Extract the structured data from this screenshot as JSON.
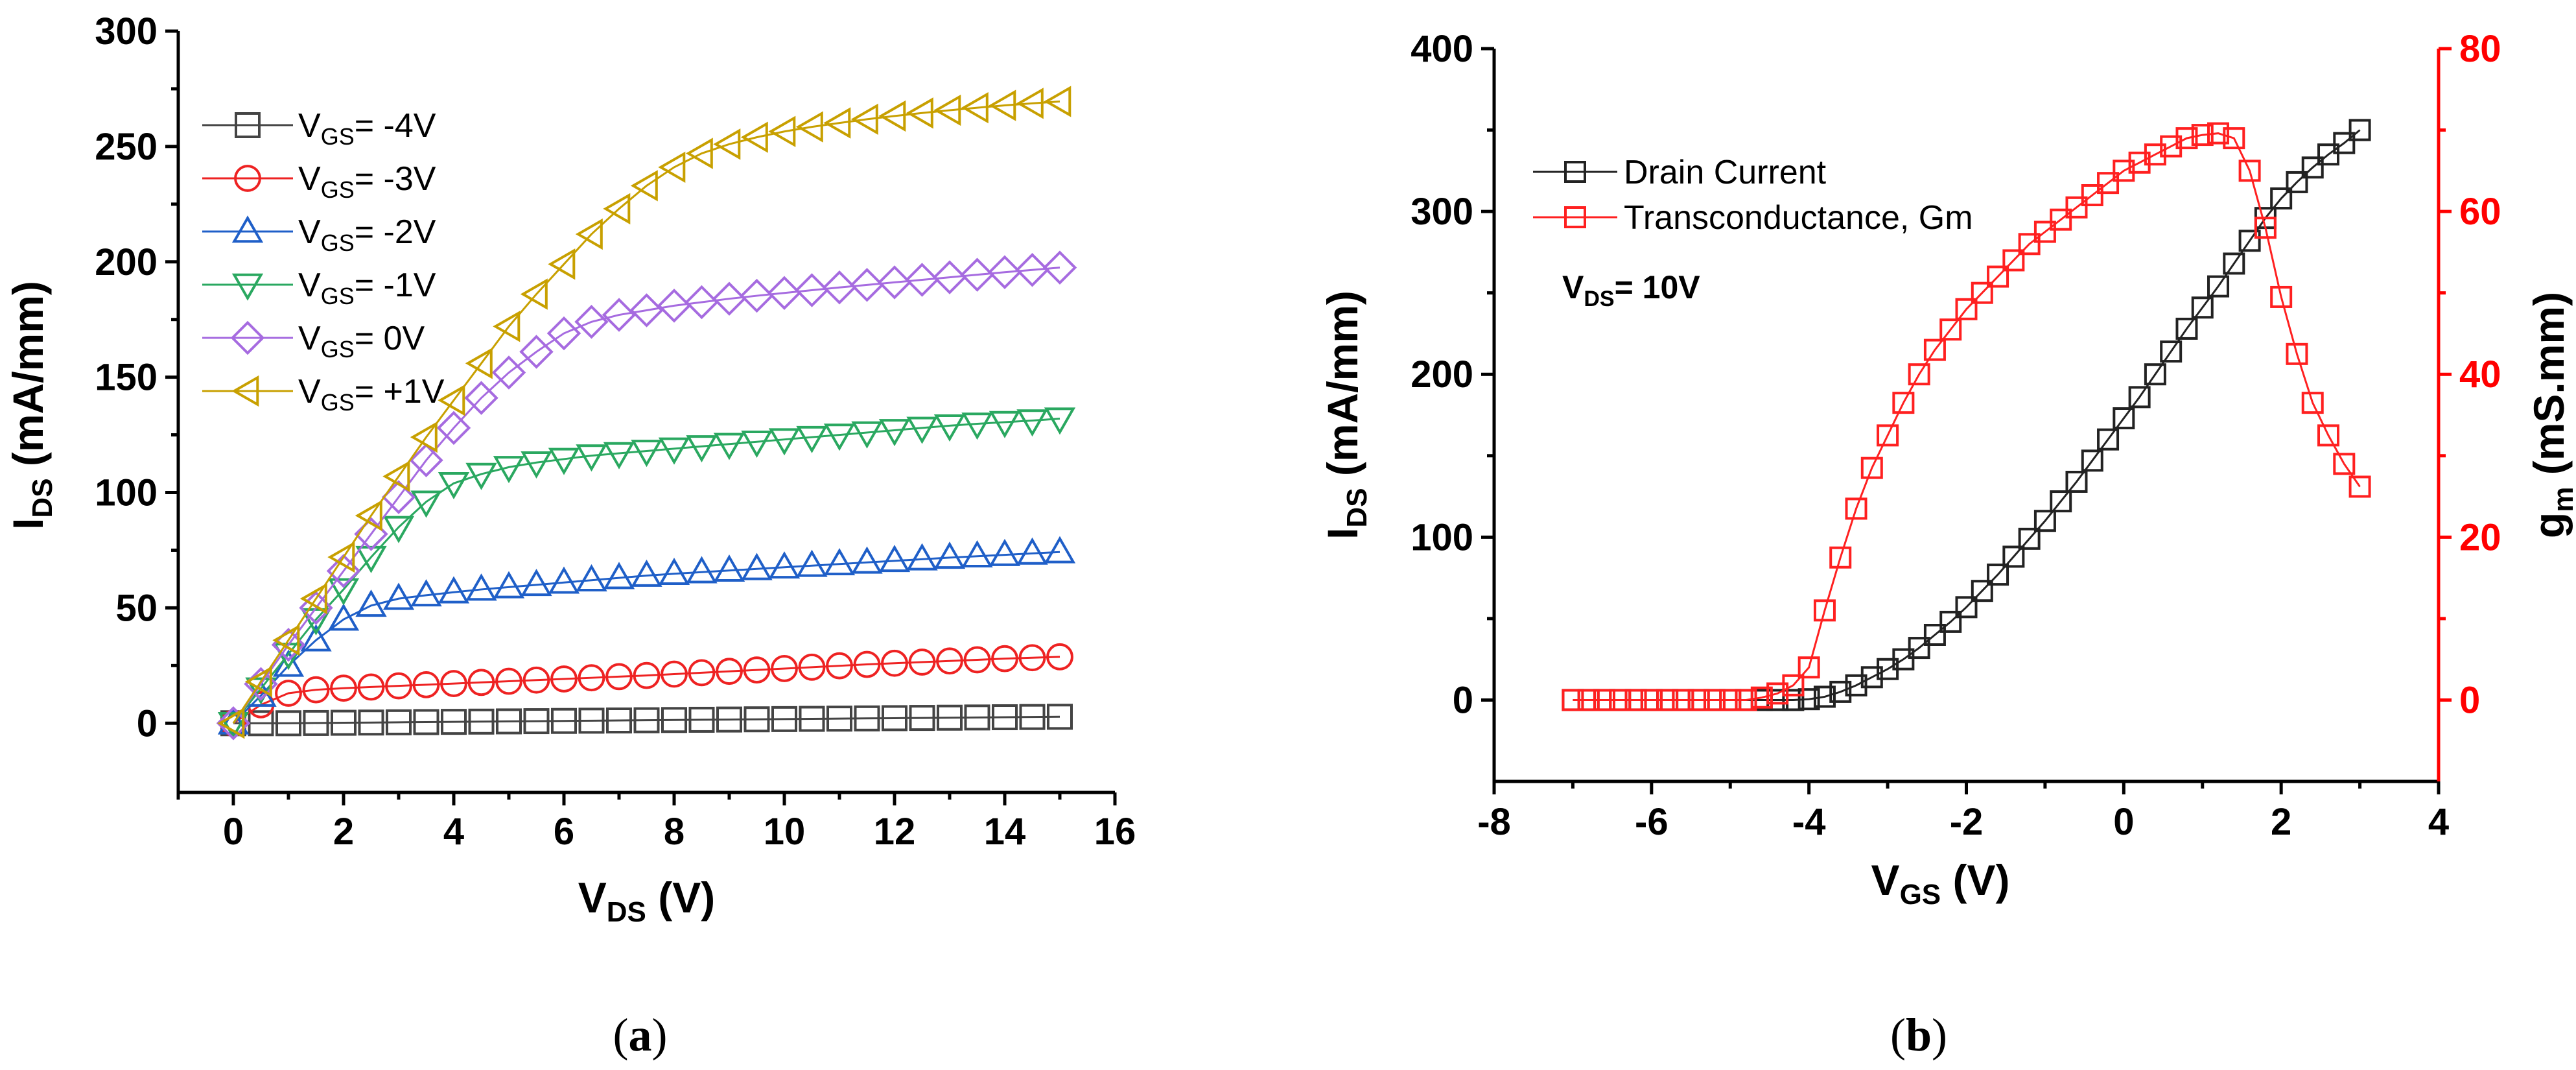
{
  "chart_data": [
    {
      "type": "scatter",
      "panel": "(a)",
      "caption_letter": "a",
      "xlabel": "V_DS (V)",
      "xlabel_main": "V",
      "xlabel_sub": "DS",
      "xlabel_unit": " (V)",
      "ylabel": "I_DS (mA/mm)",
      "ylabel_main": "I",
      "ylabel_sub": "DS",
      "ylabel_unit": " (mA/mm)",
      "xlim": [
        -1,
        16
      ],
      "ylim": [
        -30,
        300
      ],
      "xticks": [
        0,
        2,
        4,
        6,
        8,
        10,
        12,
        14,
        16
      ],
      "yticks": [
        0,
        50,
        100,
        150,
        200,
        250,
        300
      ],
      "x": [
        0,
        0.5,
        1,
        1.5,
        2,
        2.5,
        3,
        3.5,
        4,
        4.5,
        5,
        5.5,
        6,
        6.5,
        7,
        7.5,
        8,
        8.5,
        9,
        9.5,
        10,
        10.5,
        11,
        11.5,
        12,
        12.5,
        13,
        13.5,
        14,
        14.5,
        15
      ],
      "series": [
        {
          "name": "V_GS= -4V",
          "label_main": "V",
          "label_sub": "GS",
          "label_rest": "= -4V",
          "marker": "square",
          "color": "#444444",
          "values": [
            0,
            0,
            0,
            0.1,
            0.2,
            0.3,
            0.4,
            0.5,
            0.6,
            0.7,
            0.8,
            0.9,
            1,
            1.1,
            1.2,
            1.3,
            1.4,
            1.5,
            1.6,
            1.7,
            1.8,
            1.9,
            2,
            2.1,
            2.2,
            2.3,
            2.4,
            2.5,
            2.6,
            2.7,
            2.8
          ]
        },
        {
          "name": "V_GS= -3V",
          "label_main": "V",
          "label_sub": "GS",
          "label_rest": "= -3V",
          "marker": "circle",
          "color": "#ee2222",
          "values": [
            0,
            8,
            13,
            14.5,
            15.2,
            15.7,
            16.2,
            16.7,
            17.2,
            17.7,
            18.2,
            18.7,
            19.2,
            19.7,
            20.2,
            20.7,
            21.3,
            21.9,
            22.5,
            23.1,
            23.7,
            24.3,
            24.9,
            25.5,
            26,
            26.5,
            27,
            27.5,
            28,
            28.4,
            28.8
          ]
        },
        {
          "name": "V_GS= -2V",
          "label_main": "V",
          "label_sub": "GS",
          "label_rest": "= -2V",
          "marker": "triangle-up",
          "color": "#1f5fc8",
          "values": [
            0,
            12,
            25,
            36,
            45,
            51,
            54,
            55.5,
            56.8,
            58,
            59,
            60,
            61,
            62,
            63,
            64,
            64.8,
            65.5,
            66.2,
            66.9,
            67.6,
            68.3,
            69,
            69.7,
            70.4,
            71.1,
            71.8,
            72.4,
            73,
            73.6,
            74.2
          ]
        },
        {
          "name": "V_GS= -1V",
          "label_main": "V",
          "label_sub": "GS",
          "label_rest": "= -1V",
          "marker": "triangle-down",
          "color": "#2aa860",
          "values": [
            0,
            15,
            30,
            45,
            58,
            72,
            85,
            96,
            104,
            108,
            111,
            113,
            114.5,
            116,
            117,
            118,
            119,
            120,
            121,
            122,
            123,
            124,
            125,
            126,
            127,
            128,
            129,
            129.8,
            130.5,
            131.2,
            132
          ]
        },
        {
          "name": "V_GS= 0V",
          "label_main": "V",
          "label_sub": "GS",
          "label_rest": "= 0V",
          "marker": "diamond",
          "color": "#a66be0",
          "values": [
            0,
            17,
            34,
            50,
            66,
            82,
            98,
            114,
            128,
            141,
            152,
            161,
            169,
            174,
            177,
            179,
            181,
            182.5,
            184,
            185.3,
            186.5,
            187.7,
            188.9,
            190,
            191.1,
            192.2,
            193.3,
            194.4,
            195.5,
            196.5,
            197.5
          ]
        },
        {
          "name": "V_GS= +1V",
          "label_main": "V",
          "label_sub": "GS",
          "label_rest": "= +1V",
          "marker": "triangle-left",
          "color": "#c8a000",
          "values": [
            0,
            18,
            36,
            54,
            72,
            90,
            107,
            124,
            140,
            156,
            172,
            186,
            199,
            212,
            223,
            233,
            241,
            247,
            251,
            254,
            256.5,
            258.5,
            260.2,
            261.8,
            263.2,
            264.5,
            265.7,
            266.8,
            267.8,
            268.7,
            269.5
          ]
        }
      ]
    },
    {
      "type": "scatter",
      "panel": "(b)",
      "caption_letter": "b",
      "xlabel": "V_GS (V)",
      "xlabel_main": "V",
      "xlabel_sub": "GS",
      "xlabel_unit": " (V)",
      "ylabel": "I_DS (mA/mm)",
      "ylabel_main": "I",
      "ylabel_sub": "DS",
      "ylabel_unit": " (mA/mm)",
      "y2label": "g_m (mS.mm)",
      "y2label_main": "g",
      "y2label_sub": "m",
      "y2label_unit": " (mS.mm)",
      "xlim": [
        -8,
        4
      ],
      "ylim": [
        -50,
        400
      ],
      "y2lim": [
        -10,
        80
      ],
      "xticks": [
        -8,
        -6,
        -4,
        -2,
        0,
        2,
        4
      ],
      "yticks": [
        0,
        100,
        200,
        300,
        400
      ],
      "y2ticks": [
        0,
        20,
        40,
        60,
        80
      ],
      "annotation_main": "V",
      "annotation_sub": "DS",
      "annotation_rest": "= 10V",
      "x": [
        -7,
        -6.8,
        -6.6,
        -6.4,
        -6.2,
        -6,
        -5.8,
        -5.6,
        -5.4,
        -5.2,
        -5,
        -4.8,
        -4.6,
        -4.4,
        -4.2,
        -4,
        -3.8,
        -3.6,
        -3.4,
        -3.2,
        -3,
        -2.8,
        -2.6,
        -2.4,
        -2.2,
        -2,
        -1.8,
        -1.6,
        -1.4,
        -1.2,
        -1,
        -0.8,
        -0.6,
        -0.4,
        -0.2,
        0,
        0.2,
        0.4,
        0.6,
        0.8,
        1,
        1.2,
        1.4,
        1.6,
        1.8,
        2,
        2.2,
        2.4,
        2.6,
        2.8,
        3
      ],
      "series": [
        {
          "name": "Drain Current",
          "axis": "left",
          "marker": "square",
          "color": "#222222",
          "values": [
            0,
            0,
            0,
            0,
            0,
            0,
            0,
            0,
            0,
            0,
            0,
            0,
            0,
            0,
            0,
            0.5,
            2,
            5,
            9,
            14,
            19,
            25,
            32,
            40,
            48,
            57,
            67,
            77,
            88,
            99,
            110,
            122,
            134,
            147,
            160,
            173,
            186,
            200,
            214,
            228,
            241,
            254,
            268,
            282,
            296,
            308,
            318,
            327,
            335,
            342,
            350
          ]
        },
        {
          "name": "Transconductance, Gm",
          "axis": "right",
          "marker": "square",
          "color": "#ff2020",
          "values": [
            0,
            0,
            0,
            0,
            0,
            0,
            0,
            0,
            0,
            0,
            0,
            0,
            0.3,
            0.8,
            1.8,
            4,
            11,
            17.5,
            23.5,
            28.5,
            32.5,
            36.5,
            40,
            43,
            45.5,
            48,
            50,
            52,
            54,
            56,
            57.5,
            59,
            60.5,
            62,
            63.5,
            65,
            66,
            67,
            68,
            69,
            69.4,
            69.6,
            69,
            65,
            58,
            49.5,
            42.5,
            36.5,
            32.5,
            29,
            26.2
          ]
        }
      ]
    }
  ]
}
